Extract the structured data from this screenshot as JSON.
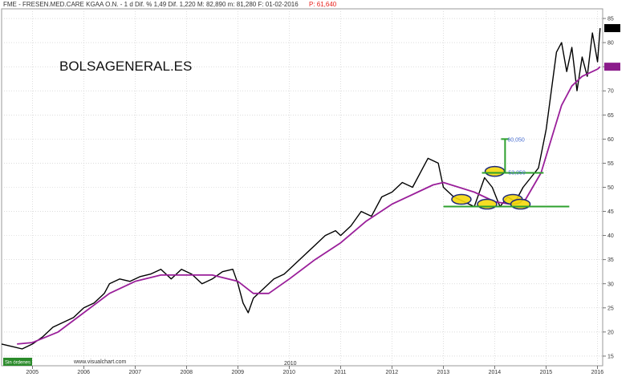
{
  "header": {
    "info": "FME - FRESEN.MED.CARE KGAA O.N. - 1 d  Dif. % 1,49  Dif. 1,220  M: 82,890  m: 81,280  F: 01-02-2016",
    "highlight": "P: 61,640"
  },
  "watermark": "BOLSAGENERAL.ES",
  "footer": {
    "orders_badge": "Sin órdenes",
    "site": "www.visualchart.com",
    "scroll_year": "2010"
  },
  "colors": {
    "price": "#000000",
    "ma": "#9a1f9a",
    "grid": "#c8c8c8",
    "support": "#2ea02e",
    "highlight_fill": "#f5d80c",
    "highlight_stroke": "#1f2a7a",
    "target": "#2ea02e",
    "ma_badge": "#8b1c8b",
    "price_badge": "#000000"
  },
  "chart_data": {
    "type": "line",
    "x_axis": {
      "label_type": "year",
      "ticks": [
        "2005",
        "2006",
        "2007",
        "2008",
        "2009",
        "2010",
        "2011",
        "2012",
        "2013",
        "2014",
        "2015",
        "2016"
      ],
      "range": [
        2004.4,
        2016.1
      ]
    },
    "y_axis": {
      "position": "right",
      "range": [
        13,
        87
      ],
      "ticks": [
        15,
        20,
        25,
        30,
        35,
        40,
        45,
        50,
        55,
        60,
        65,
        70,
        75,
        80,
        85
      ]
    },
    "grid": true,
    "series": [
      {
        "kind": "price",
        "x": [
          2004.4,
          2004.6,
          2004.8,
          2005.0,
          2005.2,
          2005.4,
          2005.6,
          2005.8,
          2006.0,
          2006.2,
          2006.4,
          2006.5,
          2006.7,
          2006.9,
          2007.1,
          2007.3,
          2007.5,
          2007.7,
          2007.9,
          2008.1,
          2008.3,
          2008.5,
          2008.7,
          2008.9,
          2009.0,
          2009.1,
          2009.2,
          2009.3,
          2009.5,
          2009.7,
          2009.9,
          2010.1,
          2010.3,
          2010.5,
          2010.7,
          2010.9,
          2011.0,
          2011.2,
          2011.4,
          2011.6,
          2011.8,
          2012.0,
          2012.2,
          2012.4,
          2012.6,
          2012.7,
          2012.9,
          2013.0,
          2013.2,
          2013.4,
          2013.6,
          2013.8,
          2013.95,
          2014.1,
          2014.25,
          2014.4,
          2014.55,
          2014.7,
          2014.85,
          2015.0,
          2015.1,
          2015.2,
          2015.3,
          2015.4,
          2015.5,
          2015.6,
          2015.7,
          2015.8,
          2015.9,
          2016.0,
          2016.05
        ],
        "y": [
          17.5,
          17,
          16.5,
          17.5,
          19,
          21,
          22,
          23,
          25,
          26,
          28,
          30,
          31,
          30.5,
          31.5,
          32,
          33,
          31,
          33,
          32,
          30,
          31,
          32.5,
          33,
          30,
          26,
          24,
          27,
          29,
          31,
          32,
          34,
          36,
          38,
          40,
          41,
          40,
          42,
          45,
          44,
          48,
          49,
          51,
          50,
          54,
          56,
          55,
          50,
          48,
          47,
          46,
          52,
          50,
          46,
          48,
          47,
          50,
          52,
          54,
          62,
          70,
          78,
          80,
          74,
          79,
          70,
          77,
          73,
          82,
          76,
          83
        ]
      },
      {
        "kind": "moving_average",
        "x": [
          2004.7,
          2005.0,
          2005.5,
          2006.0,
          2006.5,
          2007.0,
          2007.5,
          2008.0,
          2008.5,
          2009.0,
          2009.3,
          2009.6,
          2010.0,
          2010.5,
          2011.0,
          2011.5,
          2012.0,
          2012.5,
          2012.8,
          2013.0,
          2013.3,
          2013.6,
          2014.0,
          2014.3,
          2014.6,
          2014.9,
          2015.1,
          2015.3,
          2015.5,
          2015.7,
          2015.9,
          2016.0,
          2016.05
        ],
        "y": [
          17.5,
          17.8,
          20,
          24,
          28,
          30.5,
          31.8,
          31.8,
          31.8,
          30.5,
          28,
          28,
          31,
          35,
          38.5,
          43,
          46.5,
          49,
          50.5,
          51,
          50,
          49,
          47,
          46.5,
          47.5,
          53,
          60,
          67,
          71,
          73,
          74,
          74.5,
          75
        ]
      }
    ],
    "annotations": {
      "support_line": {
        "y": 46,
        "x_from": 2013.0,
        "x_to": 2015.45
      },
      "resistance_line": {
        "y": 53,
        "x_from": 2013.75,
        "x_to": 2014.95
      },
      "target_value": "60,050",
      "target_y": 60,
      "target_x": 2014.2,
      "target_base_y": 53,
      "mid_label": "53,050",
      "ellipses": [
        {
          "x": 2013.35,
          "y": 47.5
        },
        {
          "x": 2013.85,
          "y": 46.5
        },
        {
          "x": 2014.0,
          "y": 53.3
        },
        {
          "x": 2014.35,
          "y": 47.5
        },
        {
          "x": 2014.5,
          "y": 46.5
        }
      ],
      "ma_value": 75,
      "last_price": 83
    }
  }
}
